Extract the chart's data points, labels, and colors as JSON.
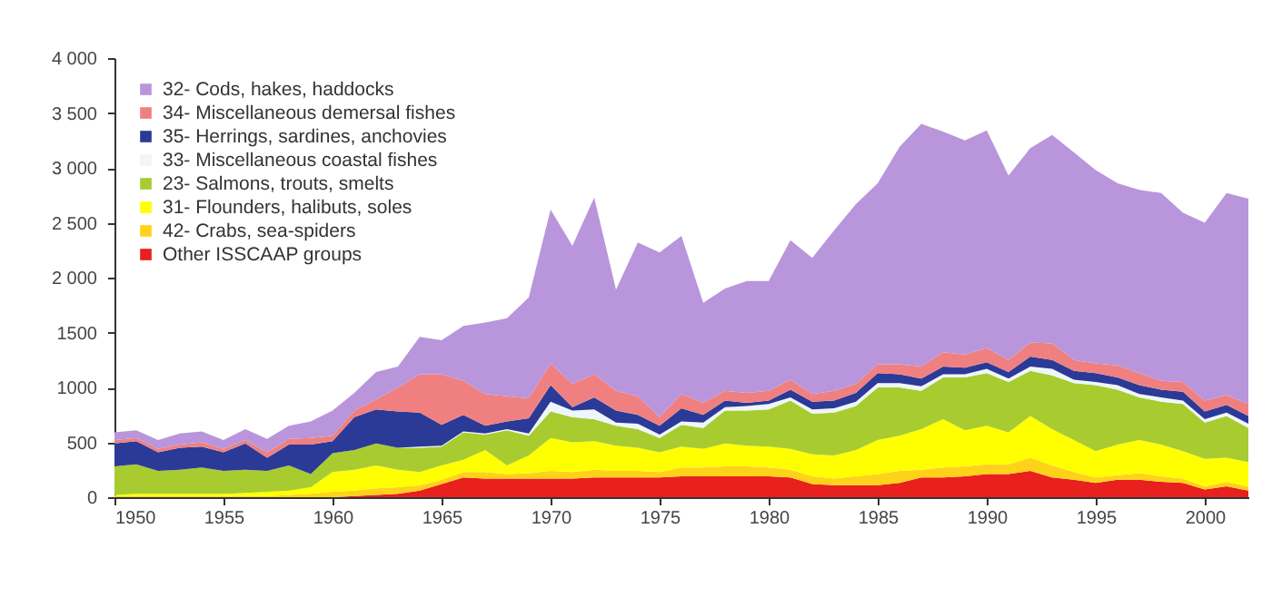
{
  "chart_data": {
    "type": "area",
    "stacked": true,
    "legend": "top left",
    "grid": false,
    "x": [
      1950,
      1951,
      1952,
      1953,
      1954,
      1955,
      1956,
      1957,
      1958,
      1959,
      1960,
      1961,
      1962,
      1963,
      1964,
      1965,
      1966,
      1967,
      1968,
      1969,
      1970,
      1971,
      1972,
      1973,
      1974,
      1975,
      1976,
      1977,
      1978,
      1979,
      1980,
      1981,
      1982,
      1983,
      1984,
      1985,
      1986,
      1987,
      1988,
      1989,
      1990,
      1991,
      1992,
      1993,
      1994,
      1995,
      1996,
      1997,
      1998,
      1999,
      2000,
      2001,
      2002
    ],
    "xlim": [
      1950,
      2002
    ],
    "xticks": [
      1950,
      1955,
      1960,
      1965,
      1970,
      1975,
      1980,
      1985,
      1990,
      1995,
      2000
    ],
    "ylim": [
      0,
      4000
    ],
    "yticks": [
      0,
      500,
      1000,
      1500,
      {
        "value": 2000,
        "label": "2 000"
      },
      {
        "value": 2500,
        "label": "2 500"
      },
      {
        "value": 3000,
        "label": "3 000"
      },
      {
        "value": 3500,
        "label": "3 500"
      },
      {
        "value": 4000,
        "label": "4 000"
      }
    ],
    "series": [
      {
        "name": "Other ISSCAAP groups",
        "color": "#e8201e",
        "values": [
          0,
          0,
          0,
          0,
          0,
          0,
          0,
          0,
          0,
          0,
          0,
          10,
          20,
          30,
          60,
          120,
          180,
          170,
          170,
          170,
          170,
          170,
          180,
          180,
          180,
          180,
          190,
          190,
          190,
          190,
          190,
          180,
          120,
          110,
          110,
          110,
          130,
          180,
          180,
          190,
          210,
          210,
          240,
          180,
          160,
          130,
          160,
          160,
          140,
          130,
          70,
          100,
          60
        ]
      },
      {
        "name": "42- Crabs, sea-spiders",
        "color": "#ffd21a",
        "values": [
          10,
          10,
          10,
          10,
          10,
          10,
          10,
          10,
          20,
          30,
          50,
          50,
          60,
          60,
          50,
          40,
          50,
          60,
          40,
          50,
          70,
          60,
          70,
          60,
          60,
          50,
          80,
          80,
          90,
          90,
          80,
          70,
          70,
          60,
          80,
          100,
          110,
          70,
          90,
          90,
          90,
          90,
          120,
          110,
          70,
          50,
          40,
          60,
          50,
          40,
          30,
          40,
          40
        ]
      },
      {
        "name": "31- Flounders, halibuts, soles",
        "color": "#ffff00",
        "values": [
          10,
          20,
          20,
          20,
          20,
          20,
          30,
          40,
          40,
          60,
          180,
          190,
          210,
          160,
          120,
          130,
          110,
          200,
          80,
          160,
          300,
          270,
          260,
          230,
          210,
          180,
          190,
          170,
          210,
          190,
          190,
          190,
          200,
          210,
          240,
          310,
          320,
          370,
          440,
          330,
          350,
          290,
          380,
          330,
          290,
          240,
          280,
          300,
          290,
          250,
          250,
          220,
          220
        ]
      },
      {
        "name": "23- Salmons, trouts, smelts",
        "color": "#a8cc30",
        "values": [
          260,
          270,
          210,
          220,
          240,
          210,
          210,
          190,
          230,
          120,
          170,
          180,
          200,
          200,
          220,
          170,
          250,
          140,
          320,
          180,
          240,
          230,
          200,
          180,
          170,
          130,
          200,
          190,
          300,
          320,
          340,
          440,
          370,
          390,
          400,
          480,
          440,
          350,
          380,
          480,
          480,
          460,
          410,
          490,
          520,
          600,
          500,
          390,
          390,
          430,
          330,
          380,
          310
        ]
      },
      {
        "name": "33- Miscellaneous coastal fishes",
        "color": "#eef6fb",
        "values": [
          0,
          0,
          0,
          0,
          0,
          0,
          0,
          0,
          0,
          0,
          0,
          0,
          0,
          0,
          10,
          10,
          10,
          10,
          10,
          20,
          90,
          60,
          90,
          30,
          50,
          30,
          30,
          50,
          30,
          40,
          50,
          30,
          40,
          40,
          40,
          40,
          40,
          40,
          30,
          30,
          40,
          30,
          40,
          60,
          30,
          30,
          40,
          30,
          40,
          30,
          30,
          30,
          40
        ]
      },
      {
        "name": "35- Herrings, sardines, anchovies",
        "color": "#2b3a96",
        "values": [
          210,
          210,
          170,
          200,
          190,
          170,
          240,
          120,
          190,
          270,
          110,
          300,
          310,
          330,
          310,
          190,
          150,
          70,
          70,
          140,
          150,
          30,
          110,
          110,
          80,
          80,
          120,
          70,
          60,
          30,
          30,
          70,
          70,
          70,
          80,
          90,
          80,
          70,
          70,
          60,
          60,
          60,
          90,
          80,
          80,
          80,
          70,
          80,
          70,
          80,
          70,
          70,
          70
        ]
      },
      {
        "name": "34- Miscellaneous demersal fishes",
        "color": "#f08080",
        "values": [
          30,
          30,
          30,
          30,
          40,
          30,
          30,
          50,
          50,
          60,
          50,
          60,
          90,
          220,
          350,
          460,
          310,
          290,
          230,
          180,
          200,
          210,
          210,
          180,
          170,
          80,
          130,
          110,
          90,
          90,
          90,
          90,
          70,
          90,
          80,
          80,
          90,
          110,
          130,
          120,
          130,
          110,
          130,
          150,
          100,
          90,
          110,
          110,
          80,
          90,
          100,
          90,
          110
        ]
      },
      {
        "name": "32- Cods, hakes, haddocks",
        "color": "#b995dc",
        "values": [
          70,
          70,
          80,
          100,
          100,
          80,
          100,
          120,
          120,
          150,
          230,
          160,
          250,
          190,
          340,
          310,
          500,
          650,
          710,
          920,
          1400,
          1260,
          1610,
          920,
          1400,
          1500,
          1440,
          910,
          930,
          1020,
          1000,
          1270,
          1240,
          1460,
          1640,
          1650,
          1980,
          2210,
          2010,
          1950,
          1980,
          1680,
          1770,
          1900,
          1890,
          1760,
          1660,
          1670,
          1710,
          1540,
          1620,
          1840,
          1870
        ]
      }
    ]
  }
}
